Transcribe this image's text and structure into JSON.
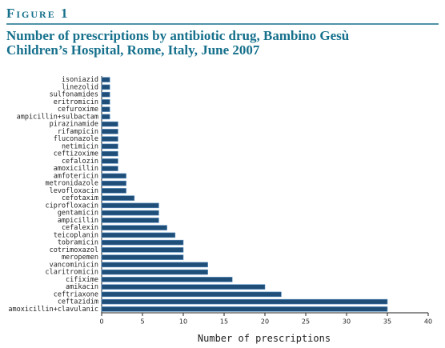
{
  "chart_data": {
    "type": "barh",
    "figure_label": "Figure 1",
    "title": [
      "Number of prescriptions by antibiotic drug, Bambino Gesù",
      "Children’s Hospital, Rome, Italy, June 2007"
    ],
    "x_label": "Number of prescriptions",
    "categories": [
      "isoniazid",
      "linezolid",
      "sulfonamides",
      "eritromicin",
      "cefuroxime",
      "ampicillin+sulbactam",
      "pirazinamide",
      "rifampicin",
      "fluconazole",
      "netimicin",
      "ceftizoxime",
      "cefalozin",
      "amoxicillin",
      "amfotericin",
      "metronidazole",
      "levofloxacin",
      "cefotaxim",
      "ciprofloxacin",
      "gentamicin",
      "ampicillin",
      "cefalexin",
      "teicoplanin",
      "tobramicin",
      "cotrimoxazol",
      "meropemen",
      "vancominicin",
      "claritromicin",
      "cifixime",
      "amikacin",
      "ceftriaxone",
      "ceftazidim",
      "amoxicillin+clavulanic"
    ],
    "values": [
      1,
      1,
      1,
      1,
      1,
      1,
      2,
      2,
      2,
      2,
      2,
      2,
      2,
      3,
      3,
      3,
      4,
      7,
      7,
      7,
      8,
      9,
      10,
      10,
      10,
      13,
      13,
      16,
      20,
      22,
      35,
      35
    ],
    "color": "#1f4e79",
    "xlim": [
      0,
      40
    ],
    "xticks": [
      0,
      5,
      10,
      15,
      20,
      25,
      30,
      35,
      40
    ]
  }
}
